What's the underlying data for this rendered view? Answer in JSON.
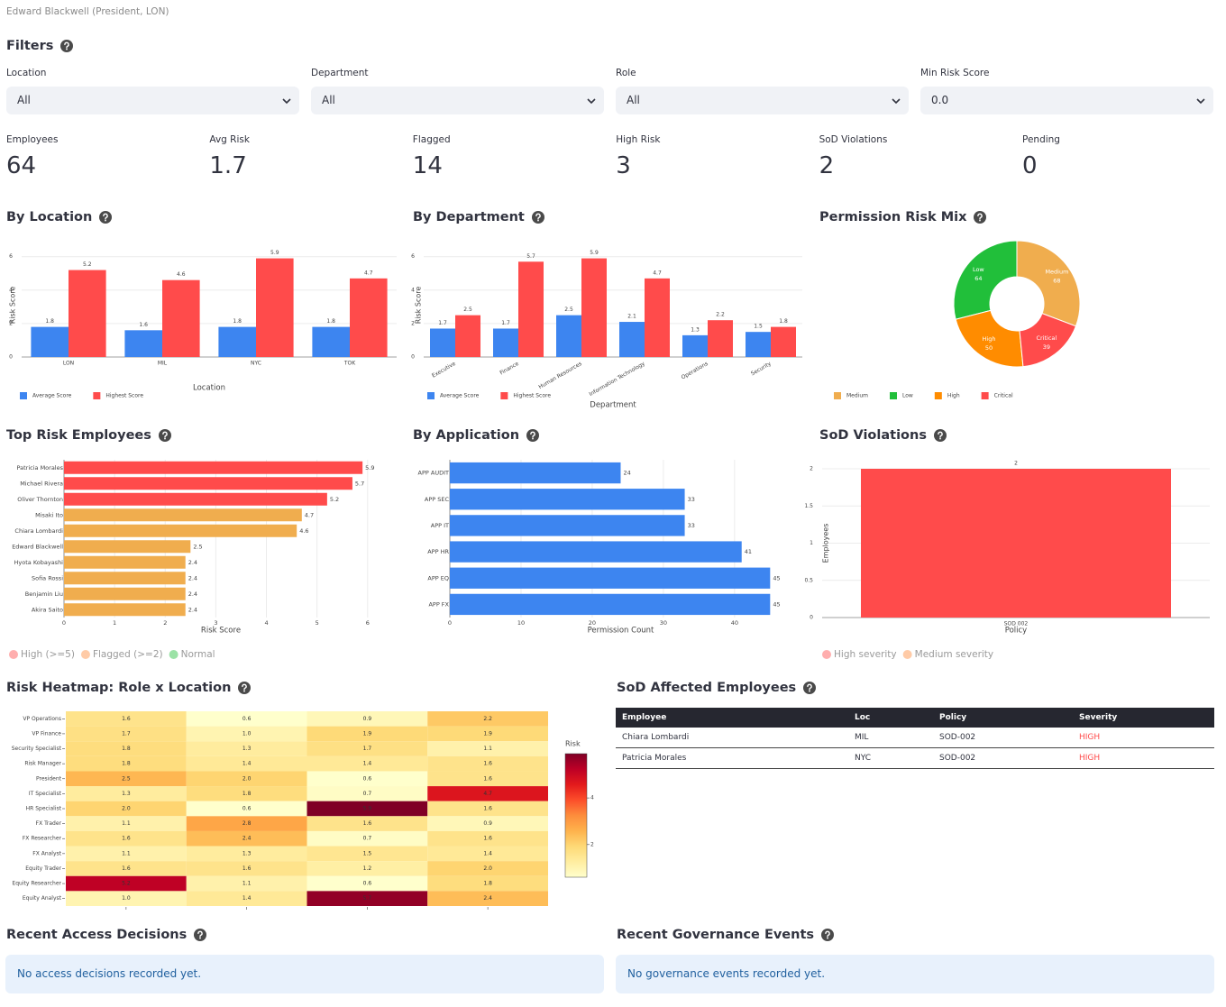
{
  "header": {
    "user": "Edward Blackwell (President, LON)"
  },
  "filters": {
    "title": "Filters",
    "fields": [
      {
        "label": "Location",
        "value": "All"
      },
      {
        "label": "Department",
        "value": "All"
      },
      {
        "label": "Role",
        "value": "All"
      },
      {
        "label": "Min Risk Score",
        "value": "0.0"
      }
    ]
  },
  "metrics": [
    {
      "label": "Employees",
      "value": 64
    },
    {
      "label": "Avg Risk",
      "value": 1.7
    },
    {
      "label": "Flagged",
      "value": 14
    },
    {
      "label": "High Risk",
      "value": 3
    },
    {
      "label": "SoD Violations",
      "value": 2
    },
    {
      "label": "Pending",
      "value": 0
    }
  ],
  "chart_data": [
    {
      "type": "bar",
      "title": "By Location",
      "xlabel": "Location",
      "ylabel": "Risk Score",
      "categories": [
        "LON",
        "MIL",
        "NYC",
        "TOK"
      ],
      "series": [
        {
          "name": "Average Score",
          "color": "#3d85f0",
          "values": [
            1.8,
            1.6,
            1.8,
            1.8
          ]
        },
        {
          "name": "Highest Score",
          "color": "#ff4b4b",
          "values": [
            5.2,
            4.6,
            5.9,
            4.7
          ]
        }
      ],
      "ylim": [
        0,
        6.2
      ],
      "yticks": [
        0,
        2,
        4,
        6
      ],
      "grid": true,
      "data_labels": true,
      "legend": "bottom-left"
    },
    {
      "type": "bar",
      "title": "By Department",
      "xlabel": "Department",
      "ylabel": "Risk Score",
      "categories": [
        "Executive",
        "Finance",
        "Human Resources",
        "Information Technology",
        "Operations",
        "Security"
      ],
      "series": [
        {
          "name": "Average Score",
          "color": "#3d85f0",
          "values": [
            1.7,
            1.7,
            2.5,
            2.1,
            1.3,
            1.5
          ]
        },
        {
          "name": "Highest Score",
          "color": "#ff4b4b",
          "values": [
            2.5,
            5.7,
            5.9,
            4.7,
            2.2,
            1.8
          ]
        }
      ],
      "ylim": [
        0,
        6.2
      ],
      "yticks": [
        0,
        2,
        4,
        6
      ],
      "grid": true,
      "data_labels": true,
      "legend": "bottom-left"
    },
    {
      "type": "pie",
      "title": "Permission Risk Mix",
      "categories": [
        "Medium",
        "Low",
        "High",
        "Critical"
      ],
      "values": [
        68,
        64,
        50,
        39
      ],
      "colors": [
        "#f0ad4e",
        "#21bf3a",
        "#ff8c00",
        "#ff4b4b"
      ],
      "hole": true,
      "legend": "bottom-left"
    },
    {
      "type": "hbar",
      "title": "Top Risk Employees",
      "xlabel": "Risk Score",
      "categories": [
        "Patricia Morales",
        "Michael Rivera",
        "Oliver Thornton",
        "Misaki Ito",
        "Chiara Lombardi",
        "Edward Blackwell",
        "Hyota Kobayashi",
        "Sofia Rossi",
        "Benjamin Liu",
        "Akira Saito"
      ],
      "values": [
        5.9,
        5.7,
        5.2,
        4.7,
        4.6,
        2.5,
        2.4,
        2.4,
        2.4,
        2.4
      ],
      "colors": [
        "#ff4b4b",
        "#ff4b4b",
        "#ff4b4b",
        "#f0ad4e",
        "#f0ad4e",
        "#f0ad4e",
        "#f0ad4e",
        "#f0ad4e",
        "#f0ad4e",
        "#f0ad4e"
      ],
      "xlim": [
        0,
        6.2
      ],
      "xticks": [
        0,
        1,
        2,
        3,
        4,
        5,
        6
      ],
      "grid": true,
      "data_labels": true,
      "legend_entries": [
        {
          "name": "High (>=5)",
          "color": "#ff4b4b"
        },
        {
          "name": "Flagged (>=2)",
          "color": "#ff8c3c"
        },
        {
          "name": "Normal",
          "color": "#21bf3a"
        }
      ]
    },
    {
      "type": "hbar",
      "title": "By Application",
      "xlabel": "Permission Count",
      "categories": [
        "APP AUDIT",
        "APP SEC",
        "APP IT",
        "APP HR",
        "APP EQ",
        "APP FX"
      ],
      "values": [
        24,
        33,
        33,
        41,
        45,
        45
      ],
      "color": "#3d85f0",
      "xlim": [
        0,
        48
      ],
      "xticks": [
        0,
        10,
        20,
        30,
        40
      ],
      "grid": true,
      "data_labels": true
    },
    {
      "type": "bar",
      "title": "SoD Violations",
      "xlabel": "Policy",
      "ylabel": "Employees",
      "categories": [
        "SOD 002"
      ],
      "values": [
        2
      ],
      "color": "#ff4b4b",
      "ylim": [
        0,
        2
      ],
      "yticks": [
        0,
        0.5,
        1,
        1.5,
        2
      ],
      "grid": true,
      "data_labels": true,
      "legend_entries": [
        {
          "name": "High severity",
          "color": "#ff4b4b"
        },
        {
          "name": "Medium severity",
          "color": "#ff8c3c"
        }
      ]
    },
    {
      "type": "heatmap",
      "title": "Risk Heatmap: Role x Location",
      "x": [
        null,
        null,
        null,
        null
      ],
      "y": [
        "VP Operations",
        "VP Finance",
        "Security Specialist",
        "Risk Manager",
        "President",
        "IT Specialist",
        "HR Specialist",
        "FX Trader",
        "FX Researcher",
        "FX Analyst",
        "Equity Trader",
        "Equity Researcher",
        "Equity Analyst"
      ],
      "z": [
        [
          1.6,
          0.6,
          0.9,
          2.2
        ],
        [
          1.7,
          1.0,
          1.9,
          1.9
        ],
        [
          1.8,
          1.3,
          1.7,
          1.1
        ],
        [
          1.8,
          1.4,
          1.4,
          1.6
        ],
        [
          2.5,
          2.0,
          0.6,
          1.6
        ],
        [
          1.3,
          1.8,
          0.7,
          4.7
        ],
        [
          2.0,
          0.6,
          5.9,
          1.6
        ],
        [
          1.1,
          2.8,
          1.6,
          0.9
        ],
        [
          1.6,
          2.4,
          0.7,
          1.6
        ],
        [
          1.1,
          1.3,
          1.5,
          1.4
        ],
        [
          1.6,
          1.6,
          1.2,
          2.0
        ],
        [
          5.2,
          1.1,
          0.6,
          1.8
        ],
        [
          1.0,
          1.4,
          5.7,
          2.4
        ]
      ],
      "value_labels": [
        [
          "1.6",
          "0.6",
          "0.9",
          "2.2"
        ],
        [
          "1.7",
          "1.0",
          "1.9",
          "1.9"
        ],
        [
          "1.8",
          "1.3",
          "1.7",
          "1.1"
        ],
        [
          "1.8",
          "1.4",
          "1.4",
          "1.6"
        ],
        [
          "2.5",
          "2.0",
          "0.6",
          "1.6"
        ],
        [
          "1.3",
          "1.8",
          "0.7",
          "4.7"
        ],
        [
          "2.0",
          "0.6",
          "5.9",
          "1.6"
        ],
        [
          "1.1",
          "2.8",
          "1.6",
          "0.9"
        ],
        [
          "1.6",
          "2.4",
          "0.7",
          "1.6"
        ],
        [
          "1.1",
          "1.3",
          "1.5",
          "1.4"
        ],
        [
          "1.6",
          "1.6",
          "1.2",
          "2.0"
        ],
        [
          "5.2",
          "1.1",
          "0.6",
          "1.8"
        ],
        [
          "1.0",
          "1.4",
          "5.7",
          "2.4"
        ]
      ],
      "zlim": [
        0.6,
        5.9
      ],
      "zticks": [
        2,
        4
      ],
      "colorbar_title": "Risk",
      "colorscale": "YlOrRd"
    }
  ],
  "sod_table": {
    "title": "SoD Affected Employees",
    "columns": [
      "Employee",
      "Loc",
      "Policy",
      "Severity"
    ],
    "rows": [
      [
        "Chiara Lombardi",
        "MIL",
        "SOD-002",
        "HIGH"
      ],
      [
        "Patricia Morales",
        "NYC",
        "SOD-002",
        "HIGH"
      ]
    ]
  },
  "access_decisions": {
    "title": "Recent Access Decisions",
    "message": "No access decisions recorded yet."
  },
  "governance_events": {
    "title": "Recent Governance Events",
    "message": "No governance events recorded yet."
  }
}
